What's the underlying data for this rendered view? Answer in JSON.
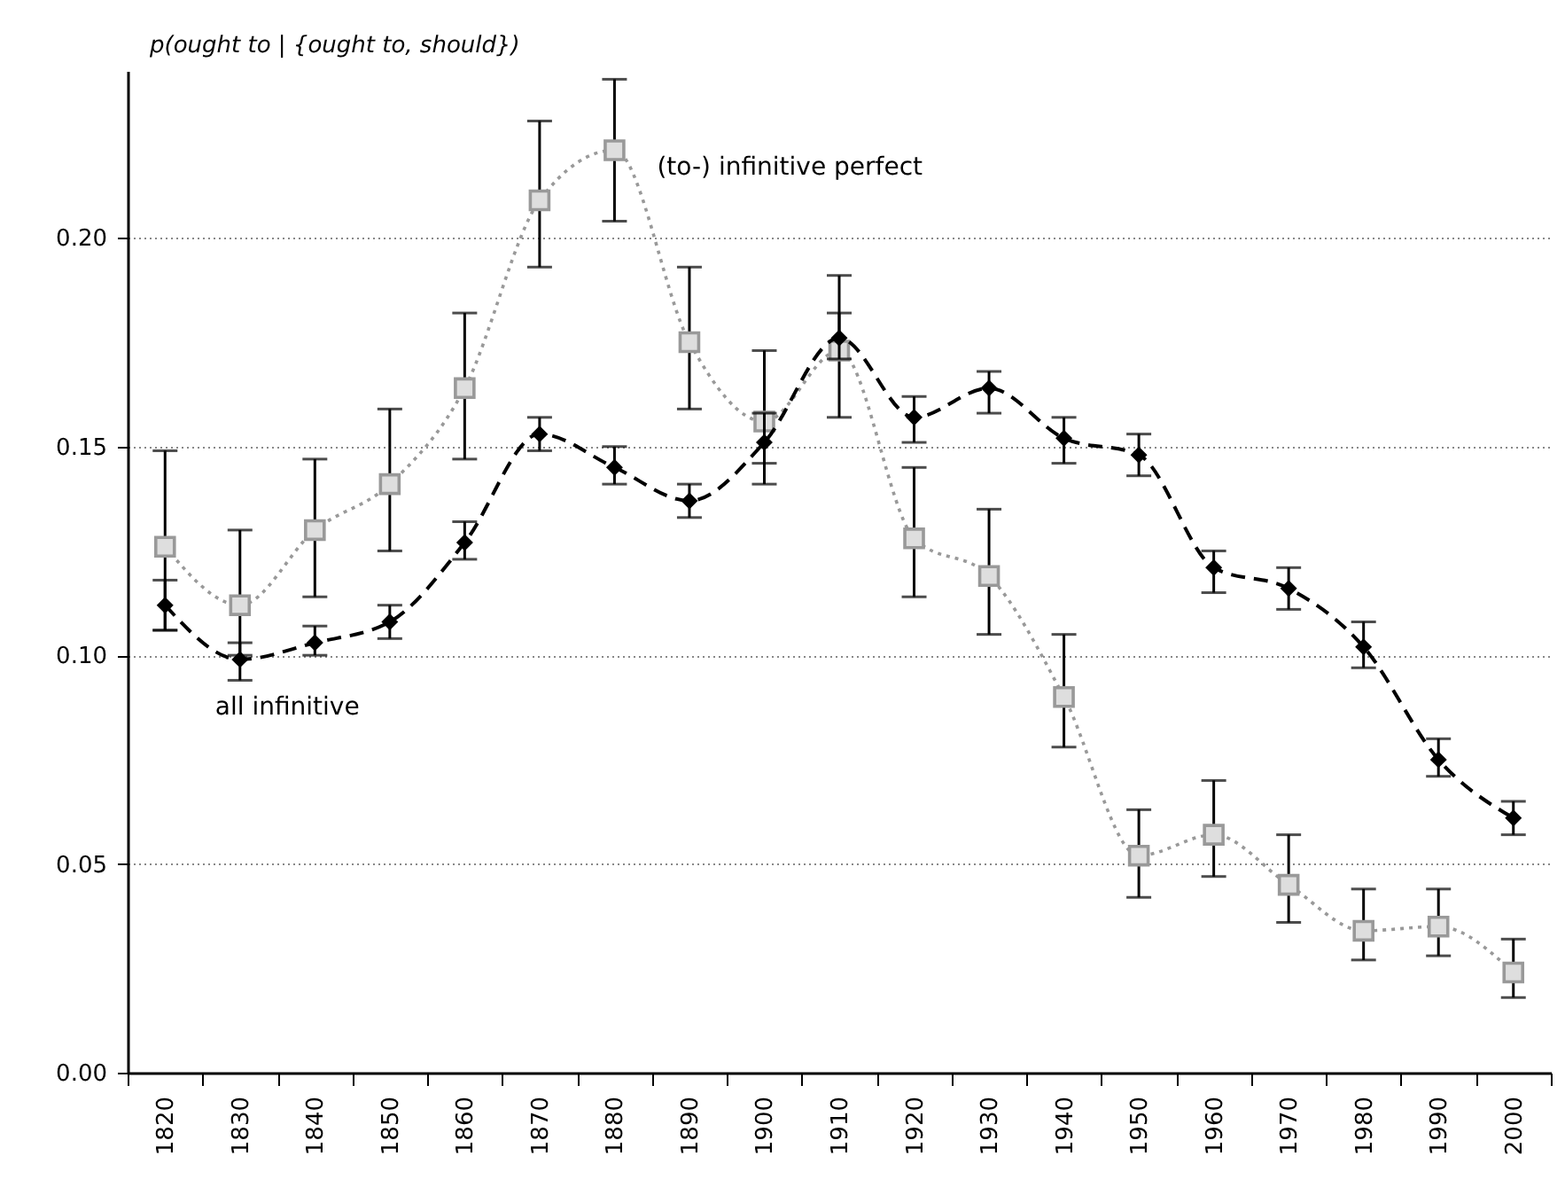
{
  "chart_data": {
    "type": "line",
    "ylabel": "p(ought to | {ought to, should})",
    "categories": [
      "1820",
      "1830",
      "1840",
      "1850",
      "1860",
      "1870",
      "1880",
      "1890",
      "1900",
      "1910",
      "1920",
      "1930",
      "1940",
      "1950",
      "1960",
      "1970",
      "1980",
      "1990",
      "2000"
    ],
    "series": [
      {
        "name": "(to-) infinitive perfect",
        "color": "#999999",
        "marker": "square",
        "line_style": "dotted",
        "values": [
          0.126,
          0.112,
          0.13,
          0.141,
          0.164,
          0.209,
          0.221,
          0.175,
          0.156,
          0.173,
          0.128,
          0.119,
          0.09,
          0.052,
          0.057,
          0.045,
          0.034,
          0.035,
          0.024
        ],
        "errors": [
          [
            0.106,
            0.149
          ],
          [
            0.1,
            0.13
          ],
          [
            0.114,
            0.147
          ],
          [
            0.125,
            0.159
          ],
          [
            0.147,
            0.182
          ],
          [
            0.193,
            0.228
          ],
          [
            0.204,
            0.238
          ],
          [
            0.159,
            0.193
          ],
          [
            0.146,
            0.173
          ],
          [
            0.157,
            0.191
          ],
          [
            0.114,
            0.145
          ],
          [
            0.105,
            0.135
          ],
          [
            0.078,
            0.105
          ],
          [
            0.042,
            0.063
          ],
          [
            0.047,
            0.07
          ],
          [
            0.036,
            0.057
          ],
          [
            0.027,
            0.044
          ],
          [
            0.028,
            0.044
          ],
          [
            0.018,
            0.032
          ]
        ]
      },
      {
        "name": "all infinitive",
        "color": "#000000",
        "marker": "diamond",
        "line_style": "dashed",
        "values": [
          0.112,
          0.099,
          0.103,
          0.108,
          0.127,
          0.153,
          0.145,
          0.137,
          0.151,
          0.176,
          0.157,
          0.164,
          0.152,
          0.148,
          0.121,
          0.116,
          0.102,
          0.075,
          0.061
        ],
        "errors": [
          [
            0.106,
            0.118
          ],
          [
            0.094,
            0.103
          ],
          [
            0.1,
            0.107
          ],
          [
            0.104,
            0.112
          ],
          [
            0.123,
            0.132
          ],
          [
            0.149,
            0.157
          ],
          [
            0.141,
            0.15
          ],
          [
            0.133,
            0.141
          ],
          [
            0.141,
            0.158
          ],
          [
            0.171,
            0.182
          ],
          [
            0.151,
            0.162
          ],
          [
            0.158,
            0.168
          ],
          [
            0.146,
            0.157
          ],
          [
            0.143,
            0.153
          ],
          [
            0.115,
            0.125
          ],
          [
            0.111,
            0.121
          ],
          [
            0.097,
            0.108
          ],
          [
            0.071,
            0.08
          ],
          [
            0.057,
            0.065
          ]
        ]
      }
    ],
    "ylim": [
      0,
      0.24
    ],
    "yticks": [
      {
        "value": 0,
        "label": "0.00"
      },
      {
        "value": 0.05,
        "label": "0.05"
      },
      {
        "value": 0.1,
        "label": "0.10"
      },
      {
        "value": 0.15,
        "label": "0.15"
      },
      {
        "value": 0.2,
        "label": "0.20"
      }
    ],
    "grid": "y"
  }
}
